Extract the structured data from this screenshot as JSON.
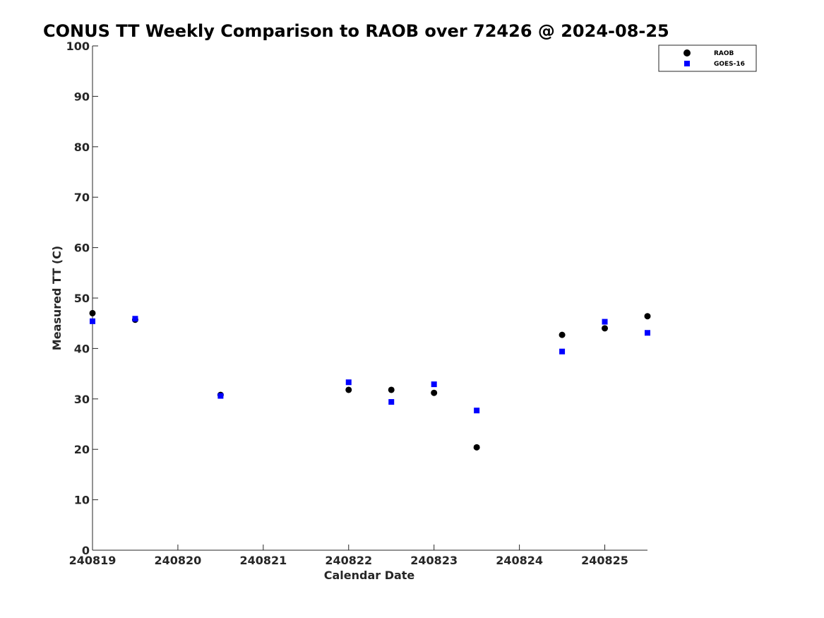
{
  "chart_data": {
    "type": "scatter",
    "title": "CONUS TT Weekly Comparison to RAOB over 72426 @ 2024-08-25",
    "xlabel": "Calendar Date",
    "ylabel": "Measured TT (C)",
    "xlim": [
      240819,
      240825.5
    ],
    "ylim": [
      0,
      100
    ],
    "xticks": [
      240819,
      240820,
      240821,
      240822,
      240823,
      240824,
      240825
    ],
    "xtick_labels": [
      "240819",
      "240820",
      "240821",
      "240822",
      "240823",
      "240824",
      "240825"
    ],
    "yticks": [
      0,
      10,
      20,
      30,
      40,
      50,
      60,
      70,
      80,
      90,
      100
    ],
    "ytick_labels": [
      "0",
      "10",
      "20",
      "30",
      "40",
      "50",
      "60",
      "70",
      "80",
      "90",
      "100"
    ],
    "grid": false,
    "legend_position": "top-right",
    "series": [
      {
        "name": "RAOB",
        "marker": "circle",
        "color": "#000000",
        "x": [
          240819,
          240819.5,
          240820.5,
          240822,
          240822.5,
          240823,
          240823.5,
          240824.5,
          240825,
          240825.5
        ],
        "y": [
          47.0,
          45.7,
          30.8,
          31.8,
          31.8,
          31.2,
          20.4,
          42.7,
          44.0,
          46.4
        ]
      },
      {
        "name": "GOES-16",
        "marker": "square",
        "color": "#0000ff",
        "x": [
          240819,
          240819.5,
          240820.5,
          240822,
          240822.5,
          240823,
          240823.5,
          240824.5,
          240825,
          240825.5
        ],
        "y": [
          45.4,
          45.9,
          30.6,
          33.3,
          29.4,
          32.9,
          27.7,
          39.4,
          45.3,
          43.1
        ]
      }
    ]
  }
}
